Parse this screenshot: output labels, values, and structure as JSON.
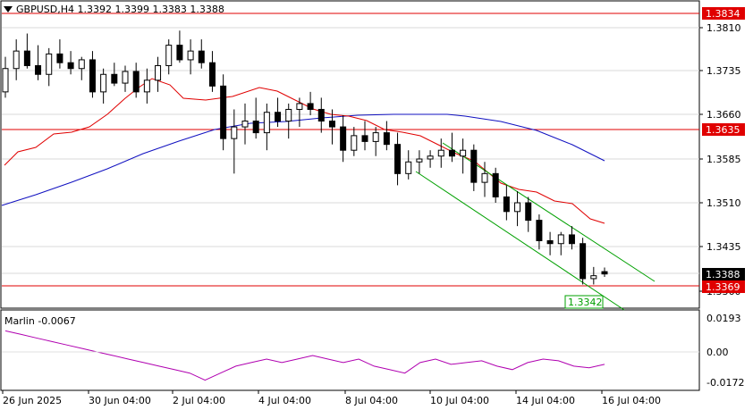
{
  "header": {
    "symbol_line": "GBPUSD,H4  1.3392 1.3399 1.3383 1.3388"
  },
  "indicator": {
    "title": "Marlin -0.0067",
    "ticks": [
      "0.0193",
      "0.00",
      "-0.0172"
    ]
  },
  "price_axis": {
    "ticks": [
      "1.3810",
      "1.3735",
      "1.3660",
      "1.3585",
      "1.3510",
      "1.3435",
      "1.3360"
    ]
  },
  "level_labels": {
    "top_red": "1.3834",
    "mid_red": "1.3635",
    "current_price": "1.3388",
    "bottom_red": "1.3369",
    "green_target": "1.3342"
  },
  "time_axis": {
    "labels": [
      "26 Jun 2025",
      "30 Jun 04:00",
      "2 Jul 04:00",
      "4 Jul 04:00",
      "8 Jul 04:00",
      "10 Jul 04:00",
      "14 Jul 04:00",
      "16 Jul 04:00"
    ]
  },
  "colors": {
    "background": "#ffffff",
    "grid": "#d8d8d8",
    "red_level": "#e00000",
    "red_ma": "#e00000",
    "blue_ma": "#1010c0",
    "channel": "#00a000",
    "indicator_line": "#b000b0",
    "candle": "#000000"
  },
  "chart_data": {
    "type": "candlestick",
    "symbol": "GBPUSD",
    "timeframe": "H4",
    "ylim": [
      1.3342,
      1.385
    ],
    "candles": [
      [
        1.37,
        1.376,
        1.369,
        1.374
      ],
      [
        1.374,
        1.379,
        1.372,
        1.377
      ],
      [
        1.377,
        1.38,
        1.374,
        1.3745
      ],
      [
        1.3745,
        1.378,
        1.372,
        1.373
      ],
      [
        1.373,
        1.3775,
        1.371,
        1.3765
      ],
      [
        1.3765,
        1.379,
        1.374,
        1.375
      ],
      [
        1.375,
        1.377,
        1.373,
        1.374
      ],
      [
        1.374,
        1.376,
        1.372,
        1.3755
      ],
      [
        1.3755,
        1.377,
        1.369,
        1.37
      ],
      [
        1.37,
        1.374,
        1.368,
        1.373
      ],
      [
        1.373,
        1.375,
        1.371,
        1.3715
      ],
      [
        1.3715,
        1.3745,
        1.37,
        1.3735
      ],
      [
        1.3735,
        1.375,
        1.369,
        1.37
      ],
      [
        1.37,
        1.374,
        1.368,
        1.372
      ],
      [
        1.372,
        1.376,
        1.37,
        1.3745
      ],
      [
        1.3745,
        1.379,
        1.373,
        1.378
      ],
      [
        1.378,
        1.3805,
        1.375,
        1.3755
      ],
      [
        1.3755,
        1.379,
        1.373,
        1.377
      ],
      [
        1.377,
        1.379,
        1.374,
        1.375
      ],
      [
        1.375,
        1.377,
        1.37,
        1.371
      ],
      [
        1.371,
        1.373,
        1.36,
        1.362
      ],
      [
        1.362,
        1.367,
        1.356,
        1.364
      ],
      [
        1.364,
        1.368,
        1.361,
        1.365
      ],
      [
        1.365,
        1.369,
        1.362,
        1.363
      ],
      [
        1.363,
        1.368,
        1.36,
        1.3665
      ],
      [
        1.3665,
        1.369,
        1.364,
        1.365
      ],
      [
        1.365,
        1.368,
        1.362,
        1.367
      ],
      [
        1.367,
        1.369,
        1.364,
        1.368
      ],
      [
        1.368,
        1.37,
        1.366,
        1.367
      ],
      [
        1.367,
        1.369,
        1.363,
        1.365
      ],
      [
        1.365,
        1.367,
        1.361,
        1.364
      ],
      [
        1.364,
        1.366,
        1.358,
        1.36
      ],
      [
        1.36,
        1.364,
        1.359,
        1.3625
      ],
      [
        1.3625,
        1.365,
        1.36,
        1.3615
      ],
      [
        1.3615,
        1.364,
        1.359,
        1.363
      ],
      [
        1.363,
        1.365,
        1.36,
        1.361
      ],
      [
        1.361,
        1.363,
        1.354,
        1.356
      ],
      [
        1.356,
        1.36,
        1.355,
        1.358
      ],
      [
        1.358,
        1.36,
        1.356,
        1.3585
      ],
      [
        1.3585,
        1.36,
        1.357,
        1.359
      ],
      [
        1.359,
        1.362,
        1.357,
        1.36
      ],
      [
        1.36,
        1.363,
        1.358,
        1.359
      ],
      [
        1.359,
        1.362,
        1.356,
        1.36
      ],
      [
        1.36,
        1.361,
        1.353,
        1.3545
      ],
      [
        1.3545,
        1.358,
        1.352,
        1.356
      ],
      [
        1.356,
        1.357,
        1.351,
        1.352
      ],
      [
        1.352,
        1.354,
        1.348,
        1.3495
      ],
      [
        1.3495,
        1.353,
        1.347,
        1.351
      ],
      [
        1.351,
        1.352,
        1.346,
        1.348
      ],
      [
        1.348,
        1.349,
        1.343,
        1.3445
      ],
      [
        1.3445,
        1.346,
        1.342,
        1.344
      ],
      [
        1.344,
        1.346,
        1.342,
        1.3455
      ],
      [
        1.3455,
        1.347,
        1.343,
        1.344
      ],
      [
        1.344,
        1.345,
        1.337,
        1.338
      ],
      [
        1.338,
        1.34,
        1.337,
        1.3385
      ],
      [
        1.3392,
        1.3399,
        1.3383,
        1.3388
      ]
    ],
    "channel": {
      "color": "green"
    },
    "indicator_values": [
      0.012,
      0.01,
      0.008,
      0.006,
      0.004,
      0.002,
      0.0,
      -0.002,
      -0.004,
      -0.006,
      -0.008,
      -0.01,
      -0.012,
      -0.016,
      -0.012,
      -0.008,
      -0.006,
      -0.004,
      -0.006,
      -0.004,
      -0.002,
      -0.004,
      -0.006,
      -0.004,
      -0.008,
      -0.01,
      -0.012,
      -0.006,
      -0.004,
      -0.007,
      -0.006,
      -0.005,
      -0.008,
      -0.01,
      -0.006,
      -0.004,
      -0.005,
      -0.008,
      -0.009,
      -0.007
    ]
  }
}
